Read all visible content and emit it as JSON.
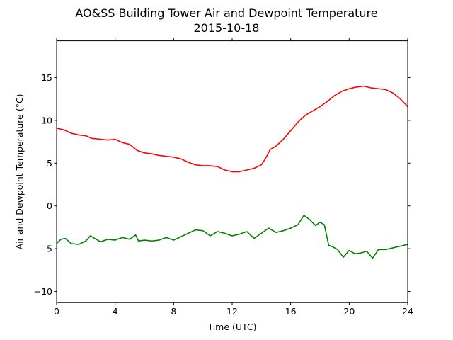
{
  "chart_data": {
    "type": "line",
    "title": "AO&SS Building Tower Air and Dewpoint Temperature",
    "subtitle": "2015-10-18",
    "xlabel": "Time (UTC)",
    "ylabel": "Air and Dewpoint Temperature (°C)",
    "xlim": [
      0,
      24
    ],
    "ylim": [
      -11.3,
      19.3
    ],
    "xticks": [
      0,
      4,
      8,
      12,
      16,
      20,
      24
    ],
    "xtick_labels": [
      "0",
      "4",
      "8",
      "12",
      "16",
      "20",
      "24"
    ],
    "yticks": [
      -10,
      -5,
      0,
      5,
      10,
      15
    ],
    "ytick_labels": [
      "−10",
      "−5",
      "0",
      "5",
      "10",
      "15"
    ],
    "grid": false,
    "legend": "none",
    "series": [
      {
        "color": "#ff0000",
        "x": [
          0,
          0.5,
          1,
          1.5,
          2,
          2.4,
          3,
          3.5,
          4,
          4.5,
          5,
          5.5,
          6,
          6.5,
          7,
          7.5,
          8,
          8.5,
          9,
          9.5,
          10,
          10.5,
          11,
          11.5,
          12,
          12.5,
          13,
          13.5,
          14,
          14.3,
          14.6,
          15,
          15.5,
          16,
          16.5,
          17,
          17.5,
          18,
          18.5,
          19,
          19.5,
          20,
          20.5,
          21,
          21.5,
          22,
          22.5,
          23,
          23.5,
          24
        ],
        "y": [
          9.1,
          8.9,
          8.5,
          8.3,
          8.2,
          7.9,
          7.8,
          7.7,
          7.8,
          7.4,
          7.2,
          6.5,
          6.2,
          6.1,
          5.9,
          5.8,
          5.7,
          5.5,
          5.1,
          4.8,
          4.7,
          4.7,
          4.6,
          4.2,
          4.0,
          4.0,
          4.2,
          4.4,
          4.8,
          5.6,
          6.6,
          7.0,
          7.8,
          8.8,
          9.8,
          10.6,
          11.1,
          11.6,
          12.2,
          12.9,
          13.4,
          13.7,
          13.9,
          14.0,
          13.8,
          13.7,
          13.6,
          13.2,
          12.5,
          11.6
        ]
      },
      {
        "color": "#008000",
        "x": [
          0,
          0.3,
          0.6,
          1,
          1.5,
          2,
          2.3,
          2.6,
          3,
          3.5,
          4,
          4.5,
          5,
          5.4,
          5.6,
          6,
          6.5,
          7,
          7.5,
          8,
          8.5,
          9,
          9.5,
          10,
          10.5,
          11,
          11.5,
          12,
          12.5,
          13,
          13.5,
          14,
          14.5,
          15,
          15.5,
          16,
          16.5,
          16.9,
          17.3,
          17.7,
          18,
          18.3,
          18.6,
          18.9,
          19.2,
          19.6,
          20,
          20.4,
          20.8,
          21.2,
          21.6,
          22,
          22.5,
          23,
          23.5,
          24
        ],
        "y": [
          -4.4,
          -3.9,
          -3.8,
          -4.4,
          -4.5,
          -4.1,
          -3.5,
          -3.8,
          -4.2,
          -3.9,
          -4.0,
          -3.7,
          -3.9,
          -3.4,
          -4.1,
          -4.0,
          -4.1,
          -4.0,
          -3.7,
          -4.0,
          -3.6,
          -3.2,
          -2.8,
          -2.9,
          -3.5,
          -3.0,
          -3.2,
          -3.5,
          -3.3,
          -3.0,
          -3.8,
          -3.2,
          -2.6,
          -3.1,
          -2.9,
          -2.6,
          -2.2,
          -1.1,
          -1.6,
          -2.3,
          -1.9,
          -2.2,
          -4.6,
          -4.8,
          -5.1,
          -6.0,
          -5.2,
          -5.6,
          -5.5,
          -5.3,
          -6.1,
          -5.1,
          -5.1,
          -4.9,
          -4.7,
          -4.5
        ]
      }
    ]
  }
}
